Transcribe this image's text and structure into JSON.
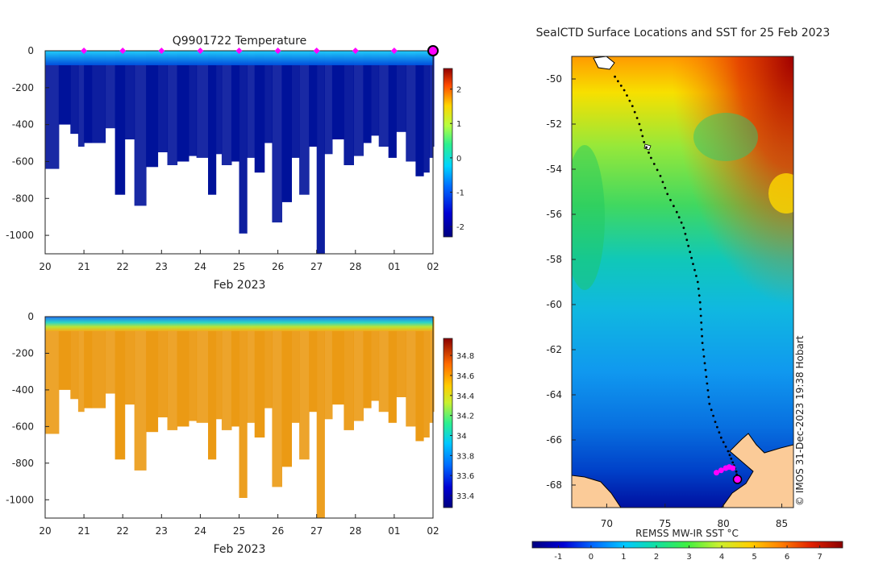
{
  "chart_data": [
    {
      "type": "heatmap",
      "panel": "temperature-section",
      "title": "Q9901722  Temperature",
      "xlabel": "Feb 2023",
      "ylabel": "",
      "xlim": [
        0,
        10
      ],
      "ylim": [
        -1100,
        0
      ],
      "x_ticks": [
        "20",
        "21",
        "22",
        "23",
        "24",
        "25",
        "26",
        "27",
        "28",
        "01",
        "02"
      ],
      "y_ticks": [
        0,
        -200,
        -400,
        -600,
        -800,
        -1000
      ],
      "colorbar": {
        "min": -2.3,
        "max": 2.6,
        "ticks": [
          2,
          1,
          0,
          -1,
          -2
        ]
      },
      "surface_value": 1.2,
      "deep_value": -1.9,
      "profile_markers_day": [
        1,
        2,
        3,
        4,
        5,
        6,
        7,
        8,
        9
      ],
      "last_position_day": 10,
      "profile_days": [
        0.0,
        0.35,
        0.65,
        0.85,
        1.0,
        1.2,
        1.55,
        1.8,
        2.05,
        2.3,
        2.6,
        2.9,
        3.15,
        3.4,
        3.7,
        3.9,
        4.2,
        4.4,
        4.55,
        4.8,
        5.0,
        5.2,
        5.4,
        5.65,
        5.85,
        6.1,
        6.35,
        6.55,
        6.8,
        7.0,
        7.2,
        7.4,
        7.7,
        7.95,
        8.2,
        8.4,
        8.6,
        8.85,
        9.05,
        9.3,
        9.55,
        9.75,
        9.9,
        10.0
      ],
      "profile_depths": [
        -640,
        -400,
        -450,
        -520,
        -500,
        -500,
        -420,
        -780,
        -480,
        -840,
        -630,
        -550,
        -620,
        -600,
        -570,
        -580,
        -780,
        -560,
        -620,
        -600,
        -990,
        -580,
        -660,
        -500,
        -930,
        -820,
        -580,
        -780,
        -520,
        -1100,
        -560,
        -480,
        -620,
        -570,
        -500,
        -460,
        -520,
        -580,
        -440,
        -600,
        -680,
        -660,
        -580,
        -520
      ]
    },
    {
      "type": "heatmap",
      "panel": "salinity-section",
      "title": "",
      "xlabel": "Feb 2023",
      "xlim": [
        0,
        10
      ],
      "ylim": [
        -1100,
        0
      ],
      "x_ticks": [
        "20",
        "21",
        "22",
        "23",
        "24",
        "25",
        "26",
        "27",
        "28",
        "01",
        "02"
      ],
      "y_ticks": [
        0,
        -200,
        -400,
        -600,
        -800,
        -1000
      ],
      "colorbar": {
        "min": 33.28,
        "max": 34.97,
        "ticks": [
          34.8,
          34.6,
          34.4,
          34.2,
          34,
          33.8,
          33.6,
          33.4
        ]
      },
      "surface_value": 33.7,
      "deep_value": 34.7
    },
    {
      "type": "heatmap",
      "panel": "sst-map",
      "title": "SealCTD Surface Locations and SST for 25 Feb 2023",
      "xlabel": "",
      "xlim": [
        67,
        86
      ],
      "ylim": [
        -69,
        -49
      ],
      "x_ticks": [
        70,
        75,
        80,
        85
      ],
      "y_ticks": [
        -50,
        -52,
        -54,
        -56,
        -58,
        -60,
        -62,
        -64,
        -66,
        -68
      ],
      "colorbar": {
        "label": "REMSS MW-IR SST °C",
        "min": -1.8,
        "max": 7.7,
        "ticks": [
          -1,
          0,
          1,
          2,
          3,
          4,
          5,
          6,
          7
        ]
      },
      "credit": "© IMOS 31-Dec-2023 19:38 Hobart",
      "track": [
        [
          70.7,
          -49.9
        ],
        [
          71.5,
          -50.5
        ],
        [
          72.2,
          -51.2
        ],
        [
          72.8,
          -52.0
        ],
        [
          73.2,
          -52.8
        ],
        [
          73.8,
          -53.5
        ],
        [
          74.6,
          -54.3
        ],
        [
          75.2,
          -55.1
        ],
        [
          76.0,
          -55.9
        ],
        [
          76.6,
          -56.6
        ],
        [
          77.0,
          -57.4
        ],
        [
          77.4,
          -58.2
        ],
        [
          77.8,
          -59.0
        ],
        [
          78.0,
          -59.9
        ],
        [
          78.1,
          -60.8
        ],
        [
          78.2,
          -61.7
        ],
        [
          78.4,
          -62.6
        ],
        [
          78.6,
          -63.5
        ],
        [
          78.8,
          -64.4
        ],
        [
          79.3,
          -65.2
        ],
        [
          79.8,
          -65.9
        ],
        [
          80.4,
          -66.5
        ],
        [
          80.8,
          -67.0
        ],
        [
          81.1,
          -67.4
        ],
        [
          81.2,
          -67.8
        ]
      ],
      "recent_positions": [
        [
          79.8,
          -67.35
        ],
        [
          80.2,
          -67.25
        ],
        [
          80.5,
          -67.2
        ],
        [
          80.8,
          -67.25
        ],
        [
          79.4,
          -67.45
        ]
      ],
      "current_position": [
        81.2,
        -67.75
      ]
    }
  ]
}
